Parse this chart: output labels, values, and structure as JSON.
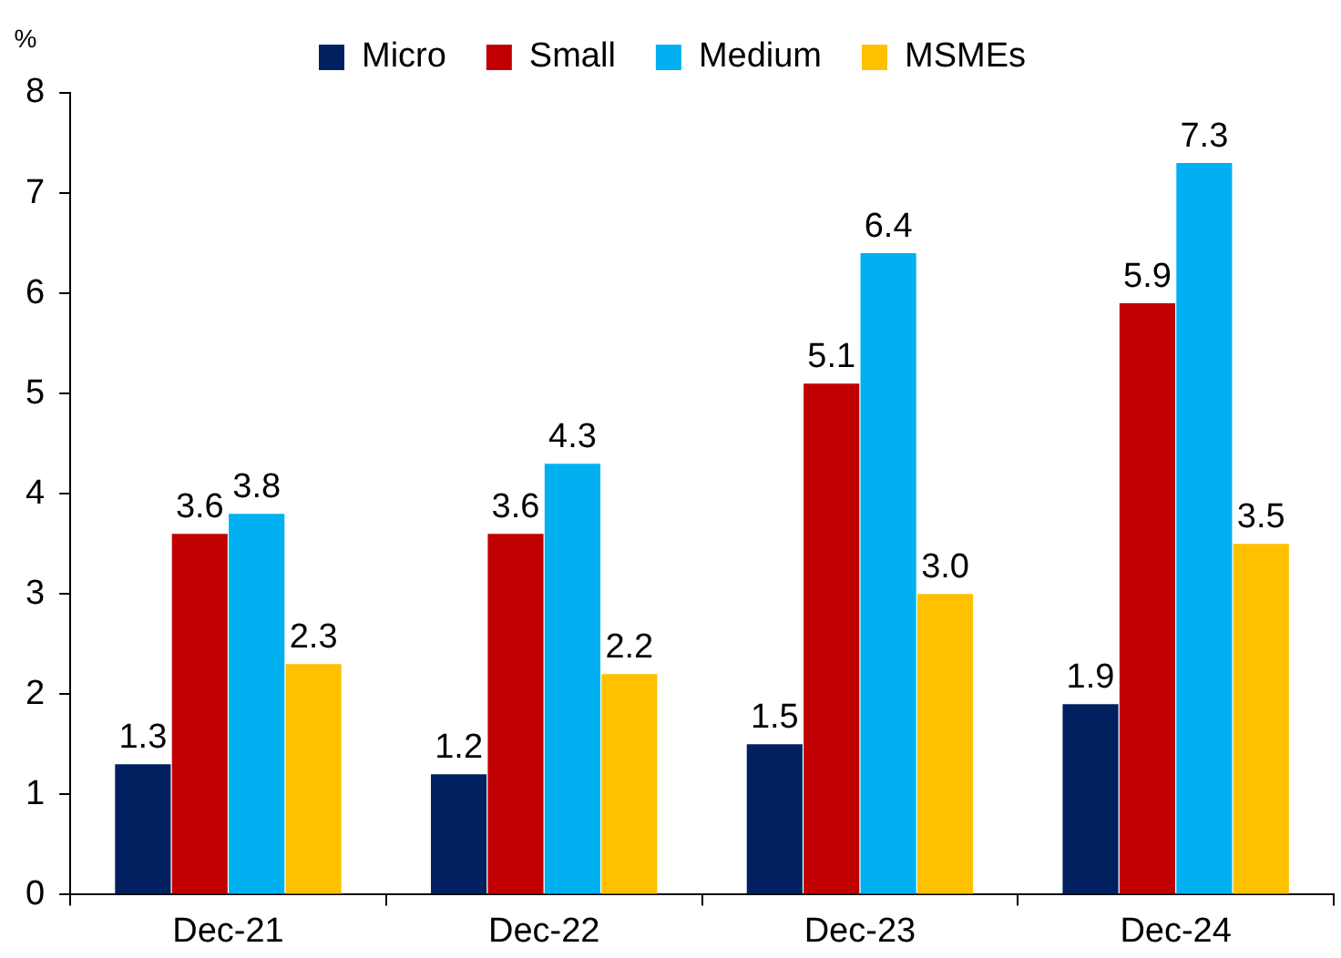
{
  "chart_data": {
    "type": "bar",
    "ylabel": "%",
    "categories": [
      "Dec-21",
      "Dec-22",
      "Dec-23",
      "Dec-24"
    ],
    "series": [
      {
        "name": "Micro",
        "color": "#002060",
        "values": [
          1.3,
          1.2,
          1.5,
          1.9
        ],
        "value_labels": [
          "1.3",
          "1.2",
          "1.5",
          "1.9"
        ]
      },
      {
        "name": "Small",
        "color": "#c00000",
        "values": [
          3.6,
          3.6,
          5.1,
          5.9
        ],
        "value_labels": [
          "3.6",
          "3.6",
          "5.1",
          "5.9"
        ]
      },
      {
        "name": "Medium",
        "color": "#00b0f0",
        "values": [
          3.8,
          4.3,
          6.4,
          7.3
        ],
        "value_labels": [
          "3.8",
          "4.3",
          "6.4",
          "7.3"
        ]
      },
      {
        "name": "MSMEs",
        "color": "#ffc000",
        "values": [
          2.3,
          2.2,
          3.0,
          3.5
        ],
        "value_labels": [
          "2.3",
          "2.2",
          "3.0",
          "3.5"
        ]
      }
    ],
    "ylim": [
      0,
      8
    ],
    "yticks": [
      0,
      1,
      2,
      3,
      4,
      5,
      6,
      7,
      8
    ],
    "legend": "top"
  }
}
